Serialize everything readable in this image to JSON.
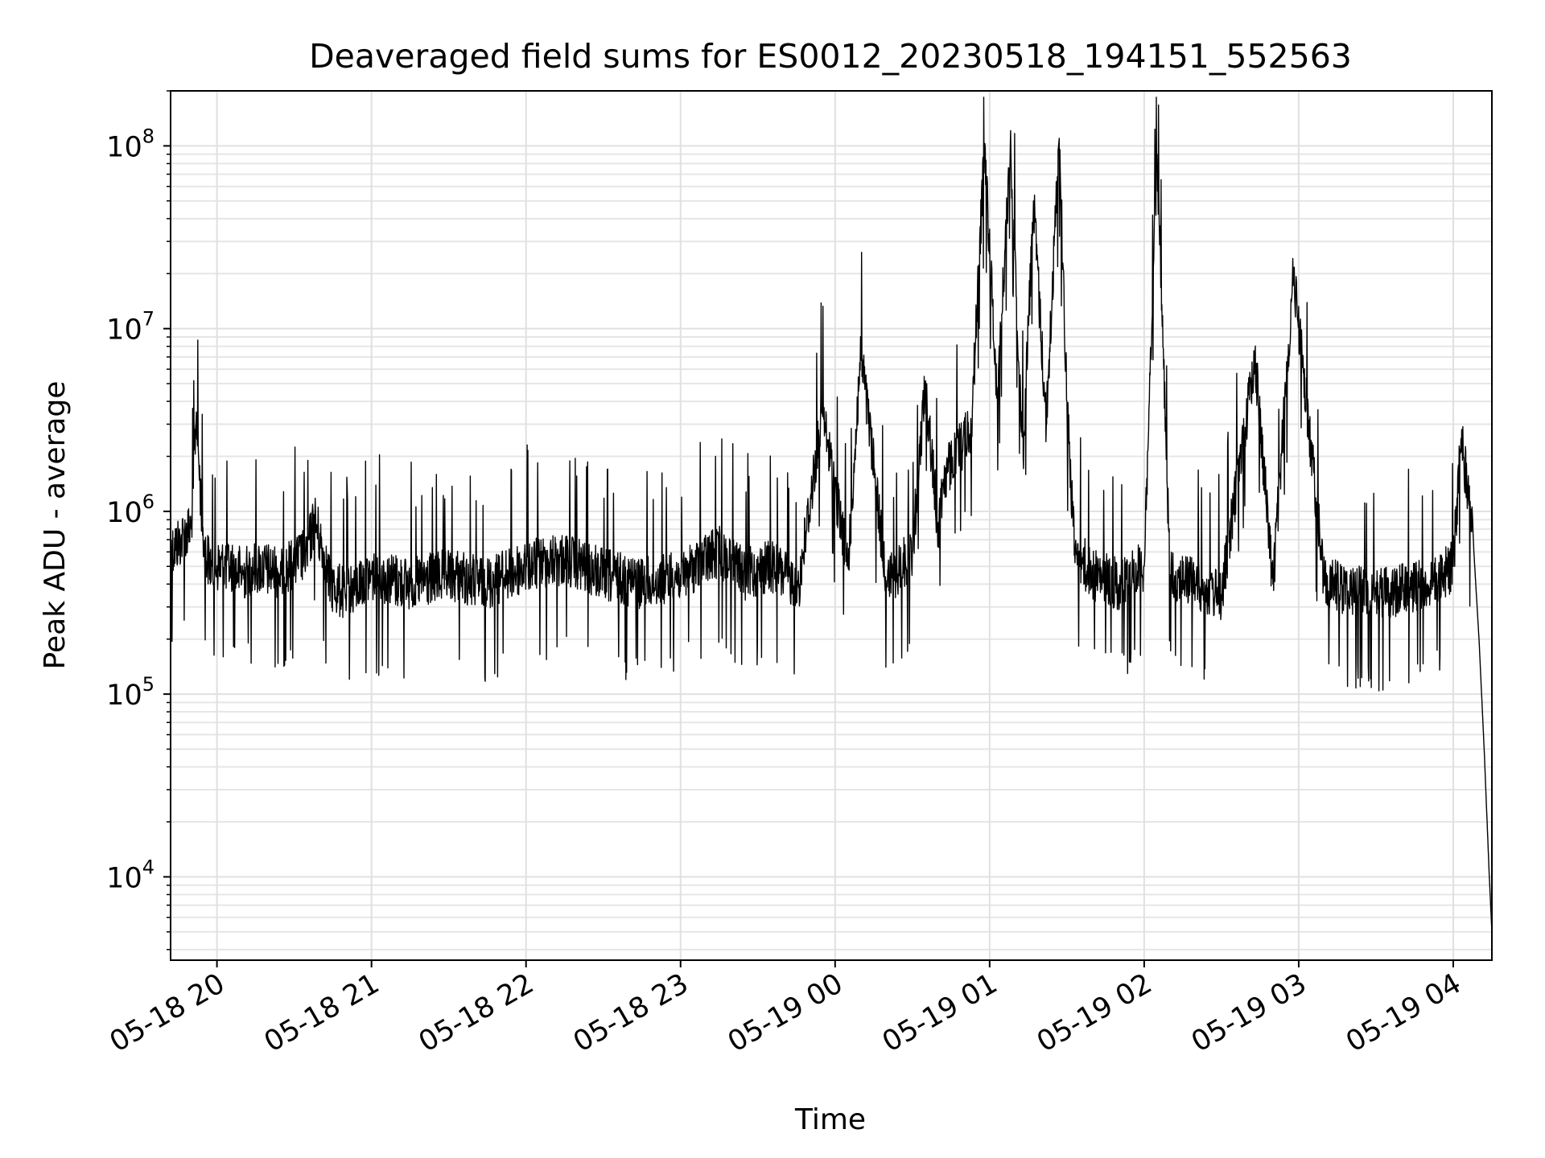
{
  "chart_data": {
    "type": "line",
    "title": "Deaveraged field sums for ES0012_20230518_194151_552563",
    "xlabel": "Time",
    "ylabel": "Peak ADU - average",
    "yscale": "log",
    "ylim": [
      3500,
      200000000
    ],
    "xlim": [
      "2023-05-18 19:42",
      "2023-05-19 04:15"
    ],
    "grid": "major and minor, light gray",
    "line_color": "#000000",
    "x_ticks": [
      "05-18 20",
      "05-18 21",
      "05-18 22",
      "05-18 23",
      "05-19 00",
      "05-19 01",
      "05-19 02",
      "05-19 03",
      "05-19 04"
    ],
    "x_tick_times": [
      "2023-05-18 20:00",
      "2023-05-18 21:00",
      "2023-05-18 22:00",
      "2023-05-18 23:00",
      "2023-05-19 00:00",
      "2023-05-19 01:00",
      "2023-05-19 02:00",
      "2023-05-19 03:00",
      "2023-05-19 04:00"
    ],
    "y_ticks": [
      {
        "value": 10000,
        "base": "10",
        "exp": "4"
      },
      {
        "value": 100000,
        "base": "10",
        "exp": "5"
      },
      {
        "value": 1000000,
        "base": "10",
        "exp": "6"
      },
      {
        "value": 10000000,
        "base": "10",
        "exp": "7"
      },
      {
        "value": 100000000,
        "base": "10",
        "exp": "8"
      }
    ],
    "series": [
      {
        "x": [
          "2023-05-18 19:42",
          "2023-05-18 19:46",
          "2023-05-18 19:50",
          "2023-05-18 19:52",
          "2023-05-18 19:53",
          "2023-05-18 19:55",
          "2023-05-18 19:58",
          "2023-05-18 20:05",
          "2023-05-18 20:10",
          "2023-05-18 20:15",
          "2023-05-18 20:25",
          "2023-05-18 20:35",
          "2023-05-18 20:38",
          "2023-05-18 20:44",
          "2023-05-18 20:50",
          "2023-05-18 21:00",
          "2023-05-18 21:15",
          "2023-05-18 21:30",
          "2023-05-18 21:45",
          "2023-05-18 22:00",
          "2023-05-18 22:15",
          "2023-05-18 22:30",
          "2023-05-18 22:45",
          "2023-05-18 23:00",
          "2023-05-18 23:15",
          "2023-05-18 23:25",
          "2023-05-18 23:35",
          "2023-05-18 23:46",
          "2023-05-18 23:55",
          "2023-05-19 00:05",
          "2023-05-19 00:10",
          "2023-05-19 00:20",
          "2023-05-19 00:30",
          "2023-05-19 00:35",
          "2023-05-19 00:40",
          "2023-05-19 00:42",
          "2023-05-19 00:47",
          "2023-05-19 00:53",
          "2023-05-19 00:58",
          "2023-05-19 01:03",
          "2023-05-19 01:08",
          "2023-05-19 01:13",
          "2023-05-19 01:17",
          "2023-05-19 01:22",
          "2023-05-19 01:27",
          "2023-05-19 01:30",
          "2023-05-19 01:33",
          "2023-05-19 01:40",
          "2023-05-19 01:50",
          "2023-05-19 02:00",
          "2023-05-19 02:05",
          "2023-05-19 02:10",
          "2023-05-19 02:20",
          "2023-05-19 02:30",
          "2023-05-19 02:43",
          "2023-05-19 02:50",
          "2023-05-19 02:58",
          "2023-05-19 03:10",
          "2023-05-19 03:30",
          "2023-05-19 03:50",
          "2023-05-19 04:00",
          "2023-05-19 04:03",
          "2023-05-19 04:06",
          "2023-05-19 04:08",
          "2023-05-19 04:10",
          "2023-05-19 04:12",
          "2023-05-19 04:14",
          "2023-05-19 04:15"
        ],
        "y": [
          600000,
          700000,
          800000,
          3500000,
          1800000,
          600000,
          500000,
          500000,
          450000,
          500000,
          450000,
          600000,
          900000,
          400000,
          350000,
          450000,
          400000,
          450000,
          400000,
          500000,
          550000,
          450000,
          400000,
          450000,
          600000,
          450000,
          500000,
          400000,
          3500000,
          500000,
          7500000,
          400000,
          600000,
          5000000,
          800000,
          1500000,
          2000000,
          3000000,
          100000000,
          4000000,
          100000000,
          2000000,
          50000000,
          3000000,
          110000000,
          4000000,
          600000,
          450000,
          400000,
          500000,
          90000000,
          450000,
          400000,
          350000,
          7000000,
          400000,
          20000000,
          400000,
          350000,
          400000,
          500000,
          2500000,
          1200000,
          600000,
          200000,
          50000,
          10000,
          5000
        ]
      }
    ]
  }
}
